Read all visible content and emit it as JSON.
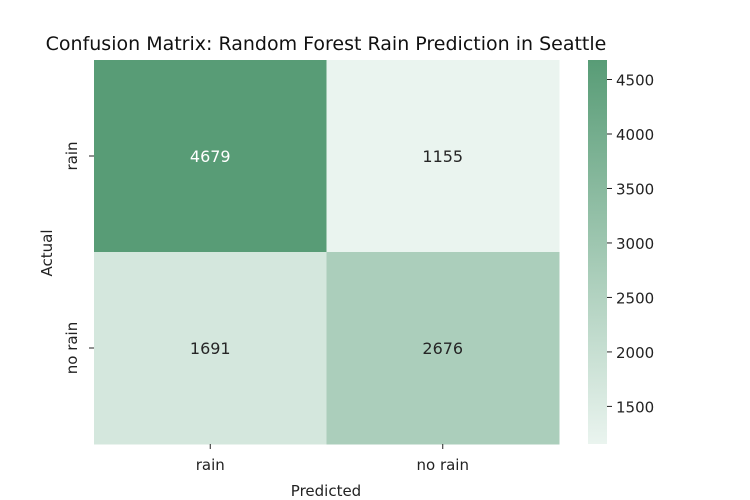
{
  "chart_data": {
    "type": "heatmap",
    "title": "Confusion Matrix: Random Forest Rain Prediction in Seattle",
    "xlabel": "Predicted",
    "ylabel": "Actual",
    "x_categories": [
      "rain",
      "no rain"
    ],
    "y_categories": [
      "rain",
      "no rain"
    ],
    "values": [
      [
        4679,
        1155
      ],
      [
        1691,
        2676
      ]
    ],
    "colorbar": {
      "min": 1155,
      "max": 4679,
      "ticks": [
        1500,
        2000,
        2500,
        3000,
        3500,
        4000,
        4500
      ],
      "color_low": "#eaf4ef",
      "color_high": "#589c76"
    },
    "annotation_colors": {
      "dark_cell": "#ffffff",
      "light_cell": "#262626"
    }
  }
}
